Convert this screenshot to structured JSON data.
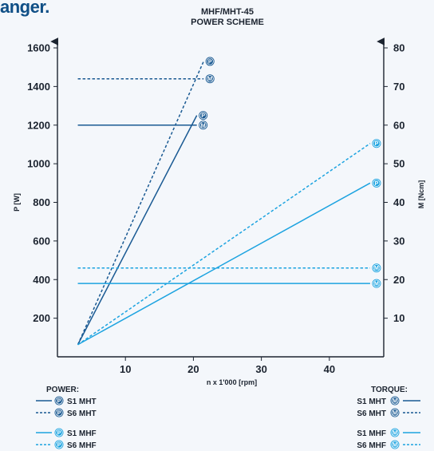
{
  "brand": "anger.",
  "chart_data": {
    "type": "line",
    "title": "MHF/MHT-45",
    "subtitle": "POWER SCHEME",
    "xlabel": "n x 1'000 [rpm]",
    "ylabel_left": "P [W]",
    "ylabel_right": "M [Ncm]",
    "xlim": [
      0,
      48
    ],
    "ylim_left": [
      0,
      1600
    ],
    "ylim_right": [
      0,
      80
    ],
    "xticks": [
      "10",
      "20",
      "30",
      "40"
    ],
    "yticks_left": [
      "200",
      "400",
      "600",
      "800",
      "1000",
      "1200",
      "1400",
      "1600"
    ],
    "yticks_right": [
      "10",
      "20",
      "30",
      "40",
      "50",
      "60",
      "70",
      "80"
    ],
    "series": [
      {
        "name": "S1 MHT",
        "kind": "power",
        "color": "#1a5a93",
        "dash": false,
        "marker": "P",
        "points": [
          [
            3,
            63
          ],
          [
            20.5,
            1250
          ]
        ]
      },
      {
        "name": "S6 MHT",
        "kind": "power",
        "color": "#1a5a93",
        "dash": true,
        "marker": "P",
        "points": [
          [
            3,
            63
          ],
          [
            21.5,
            1530
          ]
        ]
      },
      {
        "name": "S1 MHF",
        "kind": "power",
        "color": "#1ca3e0",
        "dash": false,
        "marker": "P",
        "points": [
          [
            3,
            63
          ],
          [
            46,
            900
          ]
        ]
      },
      {
        "name": "S6 MHF",
        "kind": "power",
        "color": "#1ca3e0",
        "dash": true,
        "marker": "P",
        "points": [
          [
            3,
            63
          ],
          [
            46,
            1105
          ]
        ]
      },
      {
        "name": "S1 MHT",
        "kind": "torque",
        "color": "#1a5a93",
        "dash": false,
        "marker": "M",
        "points": [
          [
            3,
            60
          ],
          [
            20.5,
            60
          ]
        ]
      },
      {
        "name": "S6 MHT",
        "kind": "torque",
        "color": "#1a5a93",
        "dash": true,
        "marker": "M",
        "points": [
          [
            3,
            72
          ],
          [
            21.5,
            72
          ]
        ]
      },
      {
        "name": "S1 MHF",
        "kind": "torque",
        "color": "#1ca3e0",
        "dash": false,
        "marker": "M",
        "points": [
          [
            3,
            19
          ],
          [
            46,
            19
          ]
        ]
      },
      {
        "name": "S6 MHF",
        "kind": "torque",
        "color": "#1ca3e0",
        "dash": true,
        "marker": "M",
        "points": [
          [
            3,
            23
          ],
          [
            46,
            23
          ]
        ]
      }
    ],
    "legend": {
      "power_heading": "POWER:",
      "torque_heading": "TORQUE:",
      "power_items": [
        {
          "label": "S1 MHT",
          "color": "#1a5a93",
          "dash": false,
          "marker": "P"
        },
        {
          "label": "S6 MHT",
          "color": "#1a5a93",
          "dash": true,
          "marker": "P"
        },
        {
          "label": "S1 MHF",
          "color": "#1ca3e0",
          "dash": false,
          "marker": "P"
        },
        {
          "label": "S6 MHF",
          "color": "#1ca3e0",
          "dash": true,
          "marker": "P"
        }
      ],
      "torque_items": [
        {
          "label": "S1 MHT",
          "color": "#1a5a93",
          "dash": false,
          "marker": "M"
        },
        {
          "label": "S6 MHT",
          "color": "#1a5a93",
          "dash": true,
          "marker": "M"
        },
        {
          "label": "S1 MHF",
          "color": "#1ca3e0",
          "dash": false,
          "marker": "M"
        },
        {
          "label": "S6 MHF",
          "color": "#1ca3e0",
          "dash": true,
          "marker": "M"
        }
      ]
    }
  }
}
